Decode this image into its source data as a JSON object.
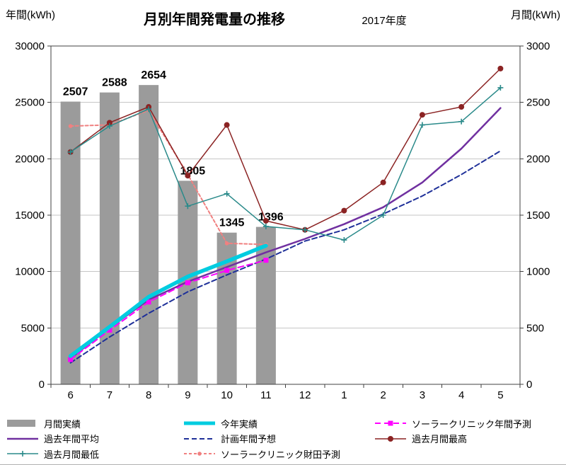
{
  "chart_data": {
    "type": "combo-bar-line",
    "title": "月別年間発電量の推移",
    "subtitle": "2017年度",
    "categories": [
      "6",
      "7",
      "8",
      "9",
      "10",
      "11",
      "12",
      "1",
      "2",
      "3",
      "4",
      "5"
    ],
    "left_axis": {
      "title": "年間(kWh)",
      "min": 0,
      "max": 30000,
      "step": 5000,
      "title_color": "#c00000"
    },
    "right_axis": {
      "title": "月間(kWh)",
      "min": 0,
      "max": 3000,
      "step": 500,
      "title_color": "#c00000"
    },
    "grid_color": "#c6c6c6",
    "border_color": "#404040",
    "series": [
      {
        "name": "月間実績",
        "type": "bar",
        "axis": "right",
        "color": "#9b9b9b",
        "label_color": "#8f8f8f",
        "show_labels": true,
        "values": [
          2507,
          2588,
          2654,
          1805,
          1345,
          1396,
          null,
          null,
          null,
          null,
          null,
          null
        ]
      },
      {
        "name": "今年実績",
        "type": "line",
        "axis": "left",
        "color": "#00cce0",
        "width": 5.5,
        "values": [
          2507,
          5095,
          7749,
          9554,
          10899,
          12295,
          null,
          null,
          null,
          null,
          null,
          null
        ]
      },
      {
        "name": "ソーラークリニック年間予測",
        "type": "line",
        "axis": "left",
        "color": "#ff00ff",
        "width": 2,
        "dash": "8 5",
        "marker": "square",
        "values": [
          2200,
          4800,
          7300,
          9000,
          10100,
          11000,
          null,
          null,
          null,
          null,
          null,
          null
        ]
      },
      {
        "name": "過去年間平均",
        "type": "line",
        "axis": "left",
        "color": "#7030a0",
        "width": 2.5,
        "values": [
          2300,
          5000,
          7500,
          9100,
          10400,
          11700,
          12900,
          14200,
          15700,
          17900,
          20900,
          24500
        ]
      },
      {
        "name": "計画年間予想",
        "type": "line",
        "axis": "left",
        "color": "#1f3099",
        "width": 2,
        "dash": "7 4",
        "values": [
          1900,
          4200,
          6300,
          8200,
          9700,
          11100,
          12700,
          13700,
          15100,
          16700,
          18600,
          20700
        ]
      },
      {
        "name": "過去月間最高",
        "type": "line",
        "axis": "right",
        "color": "#8b2323",
        "width": 1.5,
        "marker": "circle",
        "values": [
          2060,
          2320,
          2460,
          1850,
          2300,
          1450,
          1370,
          1540,
          1790,
          2390,
          2460,
          2800
        ]
      },
      {
        "name": "過去月間最低",
        "type": "line",
        "axis": "right",
        "color": "#2a8a8a",
        "width": 1.5,
        "marker": "plus",
        "values": [
          2060,
          2290,
          2440,
          1580,
          1690,
          1400,
          1370,
          1280,
          1500,
          2300,
          2330,
          2630
        ]
      },
      {
        "name": "ソーラークリニック財田予測",
        "type": "line",
        "axis": "right",
        "color": "#f08080",
        "width": 2,
        "dash": "4 3",
        "marker": "dot",
        "values": [
          2290,
          2300,
          2430,
          1860,
          1250,
          1240,
          null,
          null,
          null,
          null,
          null,
          null
        ]
      }
    ]
  }
}
